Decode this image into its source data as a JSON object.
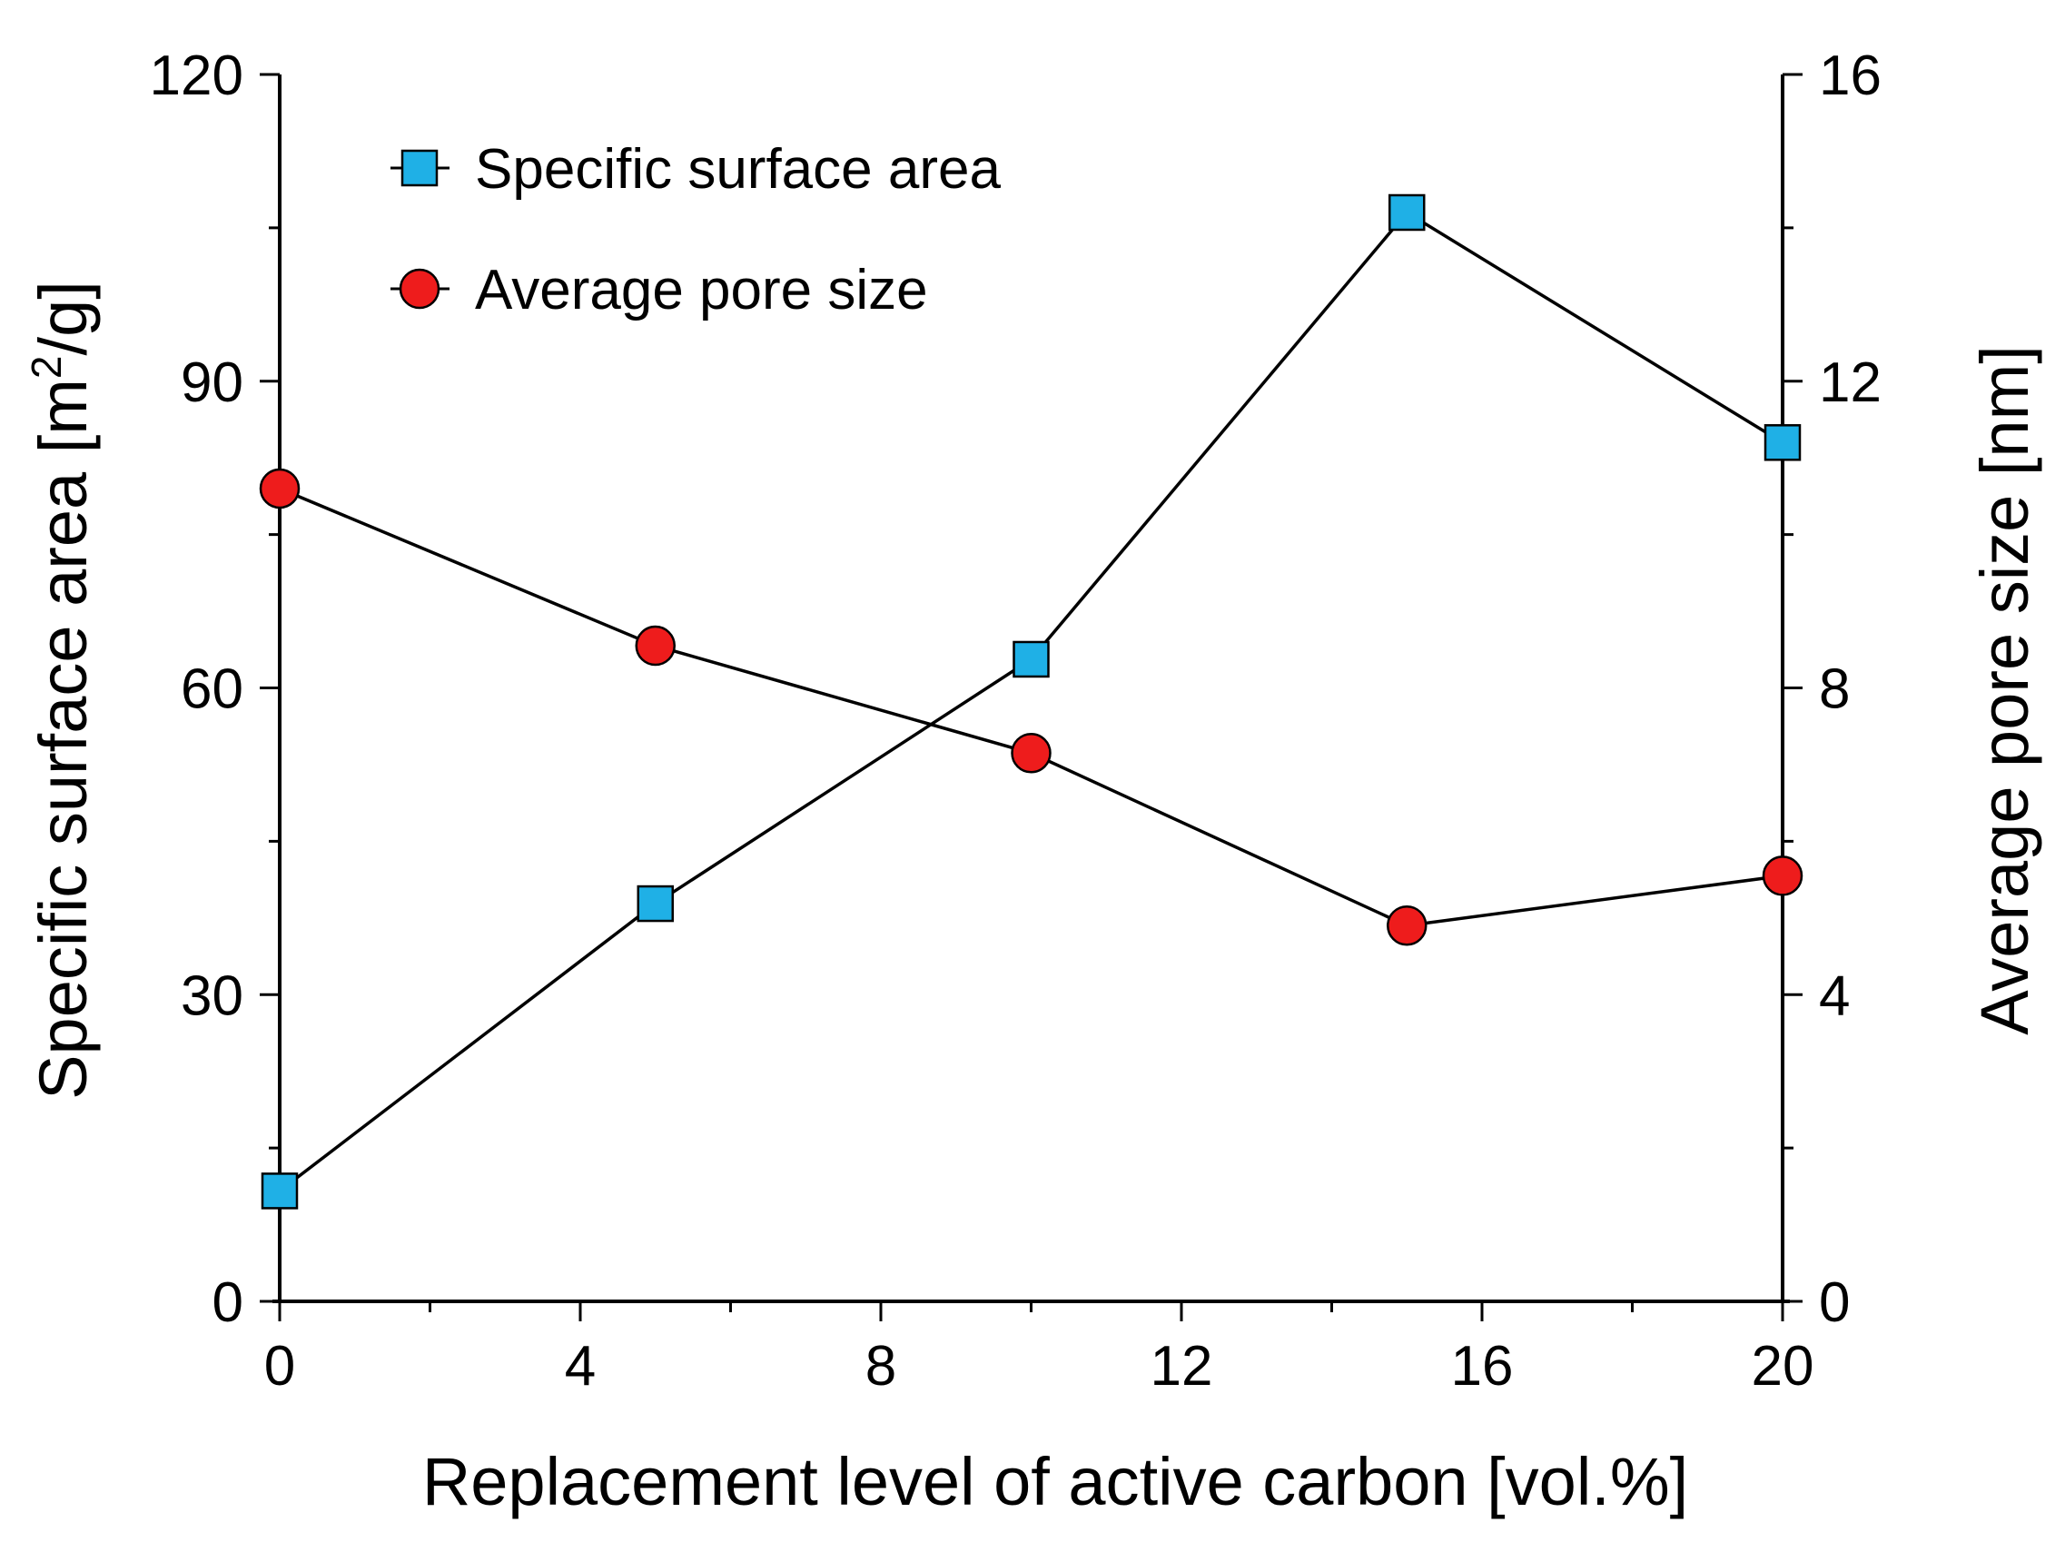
{
  "chart_data": {
    "type": "line",
    "x": [
      0,
      5,
      10,
      15,
      20
    ],
    "xlabel": "Replacement level of active carbon [vol.%]",
    "xlim": [
      0,
      20
    ],
    "xticks": [
      "0",
      "4",
      "8",
      "12",
      "16",
      "20"
    ],
    "ylabel_parts": [
      "Specific surface area [m",
      "2",
      "/g]"
    ],
    "ylim": [
      0,
      120
    ],
    "yticks": [
      "0",
      "30",
      "60",
      "90",
      "120"
    ],
    "y2label": "Average pore size [nm]",
    "y2lim": [
      0,
      16
    ],
    "y2ticks": [
      "0",
      "4",
      "8",
      "12",
      "16"
    ],
    "grid": false,
    "legend_position": "top-left",
    "series": [
      {
        "name": "Specific surface area",
        "axis": "left",
        "marker": "square",
        "color": "#1fb0e6",
        "values": [
          10.8,
          38.9,
          62.8,
          106.5,
          84.0
        ]
      },
      {
        "name": "Average pore size",
        "axis": "right",
        "marker": "circle",
        "color": "#ee1c1c",
        "values": [
          10.6,
          8.55,
          7.15,
          4.9,
          5.55
        ]
      }
    ]
  }
}
